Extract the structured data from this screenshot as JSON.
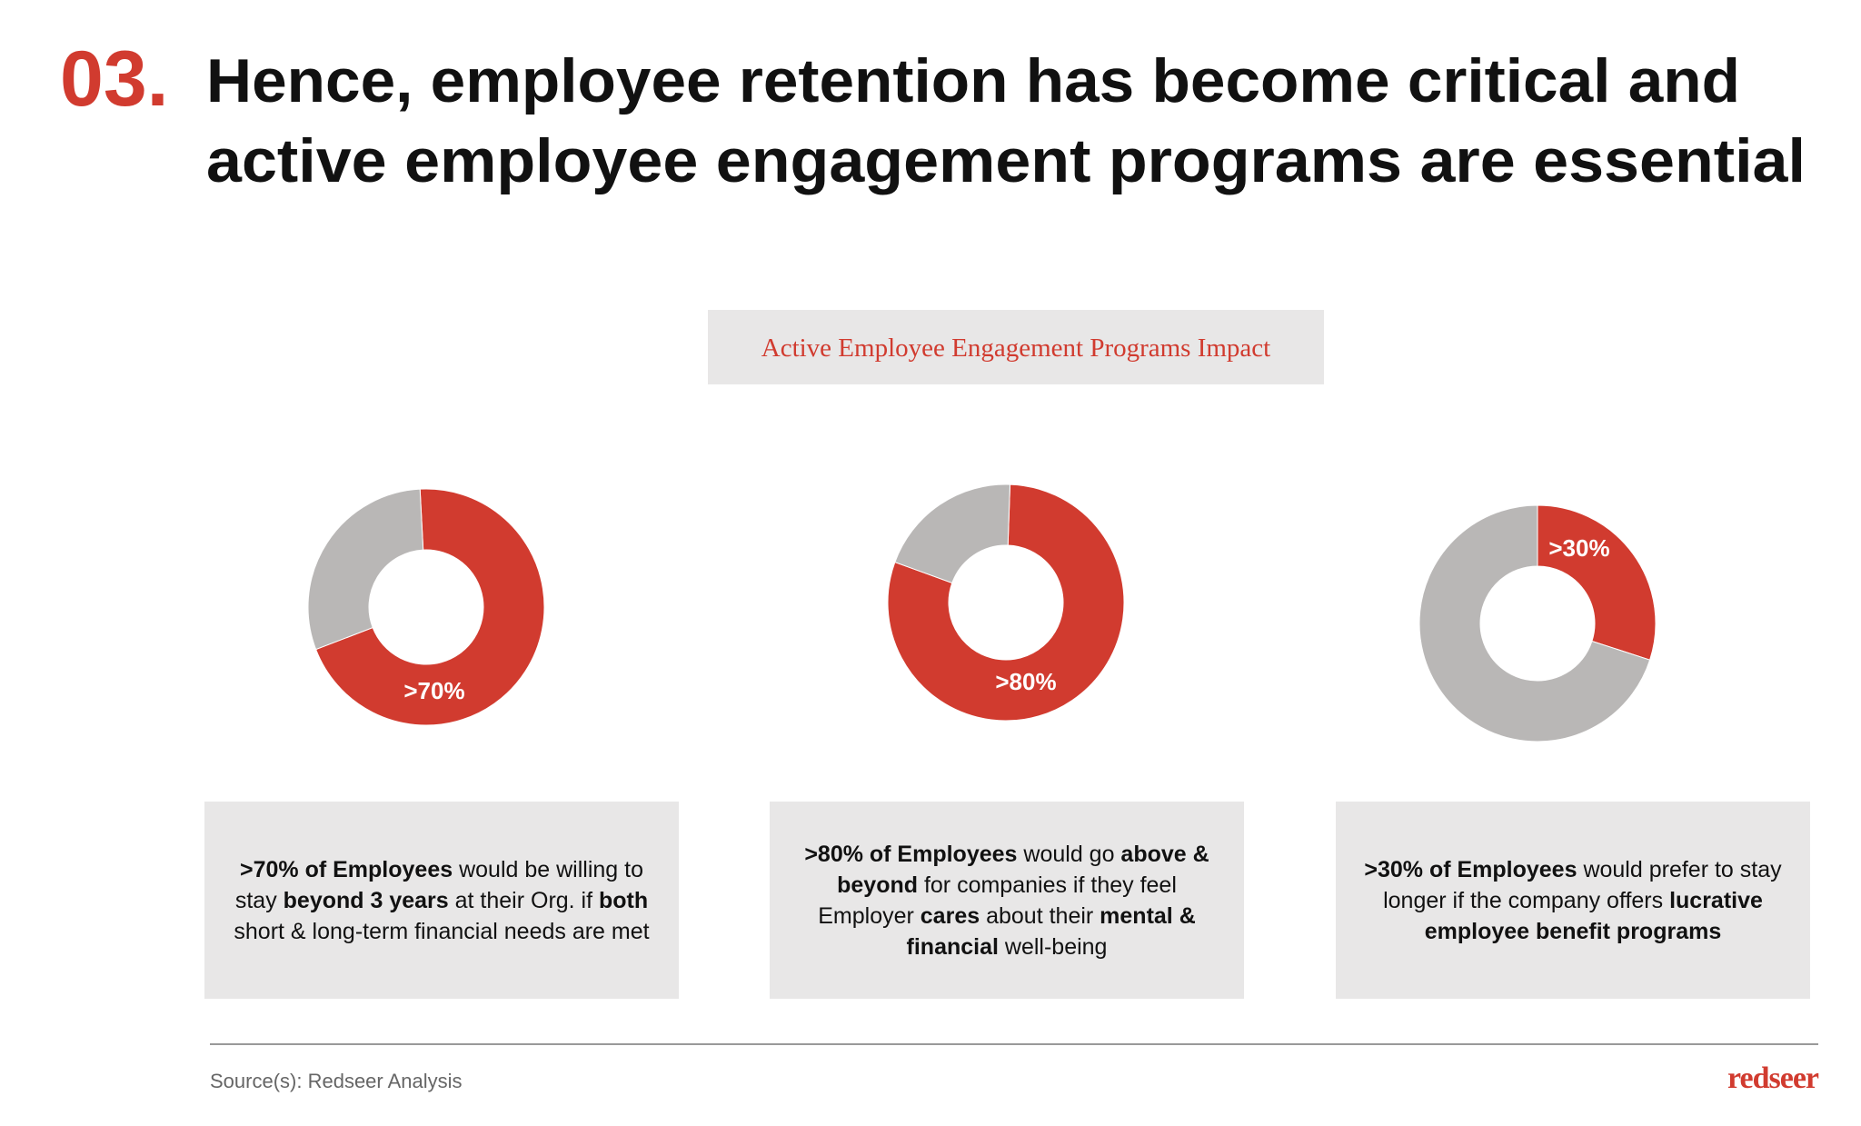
{
  "header": {
    "number": "03.",
    "title_lines": [
      "Hence, employee retention has become critical and",
      "active employee engagement programs are essential"
    ]
  },
  "section_label": "Active Employee Engagement Programs Impact",
  "chart_data": [
    {
      "type": "pie",
      "donut": true,
      "values": [
        70,
        30
      ],
      "value_labels": [
        ">70%",
        null
      ],
      "colors": [
        "#d13b2f",
        "#b9b7b6"
      ]
    },
    {
      "type": "pie",
      "donut": true,
      "values": [
        80,
        20
      ],
      "value_labels": [
        ">80%",
        null
      ],
      "colors": [
        "#d13b2f",
        "#b9b7b6"
      ]
    },
    {
      "type": "pie",
      "donut": true,
      "values": [
        30,
        70
      ],
      "value_labels": [
        ">30%",
        null
      ],
      "colors": [
        "#d13b2f",
        "#b9b7b6"
      ]
    }
  ],
  "notes": [
    {
      "runs": [
        {
          "text": ">70% of Employees",
          "bold": true
        },
        {
          "text": " would be willing to stay ",
          "bold": false
        },
        {
          "text": "beyond 3 years",
          "bold": true
        },
        {
          "text": " at their Org. if ",
          "bold": false
        },
        {
          "text": "both",
          "bold": true
        },
        {
          "text": " short & long-term financial needs are met",
          "bold": false
        }
      ]
    },
    {
      "runs": [
        {
          "text": ">80% of Employees",
          "bold": true
        },
        {
          "text": " would go ",
          "bold": false
        },
        {
          "text": "above & beyond",
          "bold": true
        },
        {
          "text": " for companies if they feel Employer ",
          "bold": false
        },
        {
          "text": "cares",
          "bold": true
        },
        {
          "text": " about their ",
          "bold": false
        },
        {
          "text": "mental & financial",
          "bold": true
        },
        {
          "text": " well-being",
          "bold": false
        }
      ]
    },
    {
      "runs": [
        {
          "text": ">30% of Employees",
          "bold": true
        },
        {
          "text": " would prefer to stay longer if the company offers ",
          "bold": false
        },
        {
          "text": "lucrative employee benefit programs",
          "bold": true
        }
      ]
    }
  ],
  "footer": {
    "source": "Source(s): Redseer Analysis",
    "logo": "redseer"
  }
}
